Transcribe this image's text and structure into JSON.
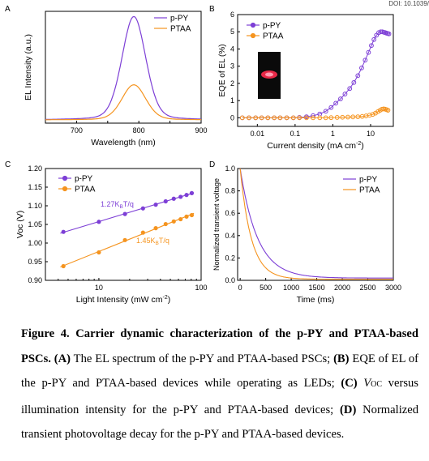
{
  "doi": "DOI: 10.1039/",
  "colors": {
    "ppy": "#7d3fd6",
    "ptaa": "#f5941f"
  },
  "chart_data": [
    {
      "panel": "A",
      "type": "line",
      "xlabel": "Wavelength (nm)",
      "ylabel": "EL Intensity (a.u.)",
      "xlim": [
        650,
        900
      ],
      "xticks": [
        "700",
        "800",
        "900"
      ],
      "legend": "top-right",
      "series": [
        {
          "name": "p-PY",
          "peak_wavelength": 792,
          "relative_peak": 1.0,
          "fwhm": 45
        },
        {
          "name": "PTAA",
          "peak_wavelength": 792,
          "relative_peak": 0.34,
          "fwhm": 45
        }
      ]
    },
    {
      "panel": "B",
      "type": "scatter",
      "xlabel": "Current density  (mA cm",
      "xlabel_sup": "-2",
      "xlabel_tail": ")",
      "ylabel": "EQE of EL (%)",
      "xscale": "log",
      "xlim": [
        0.003,
        40
      ],
      "ylim": [
        -0.5,
        6
      ],
      "xticks": [
        "0.01",
        "0.1",
        "1",
        "10"
      ],
      "yticks": [
        "0",
        "1",
        "2",
        "3",
        "4",
        "5",
        "6"
      ],
      "legend": "top-left",
      "series": [
        {
          "name": "p-PY",
          "x": [
            0.004,
            0.006,
            0.009,
            0.013,
            0.019,
            0.028,
            0.04,
            0.06,
            0.09,
            0.13,
            0.2,
            0.3,
            0.45,
            0.65,
            0.9,
            1.2,
            1.6,
            2.1,
            2.8,
            3.6,
            4.6,
            5.8,
            7.2,
            8.8,
            10.5,
            12.3,
            14.3,
            16.4,
            18.5,
            20.5,
            22.5,
            24.5,
            26.5,
            28.5,
            30.5
          ],
          "y": [
            0,
            0,
            0,
            0,
            0,
            0,
            0,
            0,
            0,
            0.02,
            0.06,
            0.12,
            0.22,
            0.38,
            0.6,
            0.85,
            1.1,
            1.38,
            1.7,
            2.05,
            2.45,
            2.9,
            3.35,
            3.8,
            4.2,
            4.55,
            4.8,
            4.95,
            5.0,
            5.0,
            4.97,
            4.95,
            4.92,
            4.9,
            4.88
          ]
        },
        {
          "name": "PTAA",
          "x": [
            0.004,
            0.006,
            0.009,
            0.013,
            0.019,
            0.028,
            0.04,
            0.06,
            0.09,
            0.13,
            0.2,
            0.3,
            0.45,
            0.65,
            0.9,
            1.3,
            1.8,
            2.5,
            3.4,
            4.6,
            6.0,
            7.6,
            9.4,
            11.4,
            13.5,
            15.7,
            17.9,
            20.1,
            22.3,
            24.5,
            26.7,
            28.9
          ],
          "y": [
            0,
            0,
            0,
            0,
            0,
            0,
            0,
            0,
            0,
            0,
            0,
            0,
            0,
            0,
            0.01,
            0.02,
            0.03,
            0.04,
            0.05,
            0.06,
            0.08,
            0.11,
            0.15,
            0.2,
            0.27,
            0.36,
            0.44,
            0.5,
            0.52,
            0.5,
            0.47,
            0.44
          ]
        }
      ]
    },
    {
      "panel": "C",
      "type": "scatter",
      "xlabel": "Light Intensity (mW cm",
      "xlabel_sup": "-2",
      "xlabel_tail": ")",
      "ylabel": "Voc (V)",
      "xscale": "log",
      "xlim": [
        3,
        100
      ],
      "ylim": [
        0.9,
        1.2
      ],
      "xticks": [
        "10",
        "100"
      ],
      "yticks": [
        "0.90",
        "0.95",
        "1.00",
        "1.05",
        "1.10",
        "1.15",
        "1.20"
      ],
      "legend": "top-left",
      "annotations": [
        {
          "base": "1.27K",
          "sub": "B",
          "tail": "T/q"
        },
        {
          "base": "1.45K",
          "sub": "B",
          "tail": "T/q"
        }
      ],
      "series": [
        {
          "name": "p-PY",
          "x": [
            4.5,
            10,
            18,
            27,
            36,
            45,
            54,
            63,
            72,
            81
          ],
          "y": [
            1.03,
            1.057,
            1.078,
            1.093,
            1.103,
            1.112,
            1.119,
            1.124,
            1.129,
            1.134
          ]
        },
        {
          "name": "PTAA",
          "x": [
            4.5,
            10,
            18,
            27,
            36,
            45,
            54,
            63,
            72,
            81
          ],
          "y": [
            0.938,
            0.975,
            1.008,
            1.028,
            1.04,
            1.051,
            1.058,
            1.064,
            1.071,
            1.075
          ]
        }
      ]
    },
    {
      "panel": "D",
      "type": "line",
      "xlabel": "Time (ms)",
      "ylabel": "Normalized transient voltage",
      "xlim": [
        -50,
        3000
      ],
      "ylim": [
        0,
        1.0
      ],
      "xticks": [
        "0",
        "500",
        "1000",
        "1500",
        "2000",
        "2500",
        "3000"
      ],
      "yticks": [
        "0.0",
        "0.2",
        "0.4",
        "0.6",
        "0.8",
        "1.0"
      ],
      "legend": "top-right",
      "series": [
        {
          "name": "p-PY",
          "decay_tau_ms": 340,
          "baseline": 0.02
        },
        {
          "name": "PTAA",
          "decay_tau_ms": 220,
          "baseline": 0.01
        }
      ]
    }
  ],
  "panel_letters": [
    "A",
    "B",
    "C",
    "D"
  ],
  "caption": {
    "title": "Figure 4. Carrier dynamic characterization of the p-PY and PTAA-based PSCs.",
    "a_label": "(A)",
    "a_text": " The EL spectrum of the p-PY and PTAA-based PSCs; ",
    "b_label": "(B)",
    "b_text": " EQE of EL of the p-PY and PTAA-based devices while operating as LEDs; ",
    "c_label": "(C)",
    "voc_v": "V",
    "voc_sub": "OC",
    "c_text": " versus illumination intensity for the p-PY and PTAA-based devices; ",
    "d_label": "(D)",
    "d_text": " Normalized transient photovoltage decay for the p-PY and PTAA-based devices."
  }
}
